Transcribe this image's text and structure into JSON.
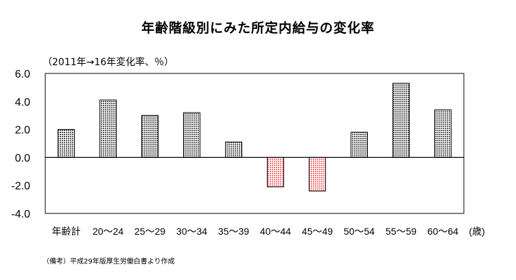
{
  "title": "年齢階級別にみた所定内給与の変化率",
  "unit_label": "（2011年→16年変化率、％）",
  "note": "（備考）平成29年版厚生労働白書より作成",
  "colors": {
    "positive_fill": "#b8b8b8",
    "negative_fill": "#ff9e9e",
    "axis": "#000000"
  },
  "chart_data": {
    "type": "bar",
    "categories": [
      "年齢計",
      "20～24",
      "25～29",
      "30～34",
      "35～39",
      "40～44",
      "45～49",
      "50～54",
      "55～59",
      "60～64"
    ],
    "x_unit_label": "(歳)",
    "values": [
      2.0,
      4.1,
      3.0,
      3.2,
      1.1,
      -2.1,
      -2.4,
      1.8,
      5.3,
      3.4
    ],
    "ylim": [
      -4.0,
      6.0
    ],
    "yticks": [
      "6.0",
      "4.0",
      "2.0",
      "0.0",
      "-2.0",
      "-4.0"
    ],
    "ytick_values": [
      6,
      4,
      2,
      0,
      -2,
      -4
    ],
    "grid": false,
    "legend": "none"
  }
}
